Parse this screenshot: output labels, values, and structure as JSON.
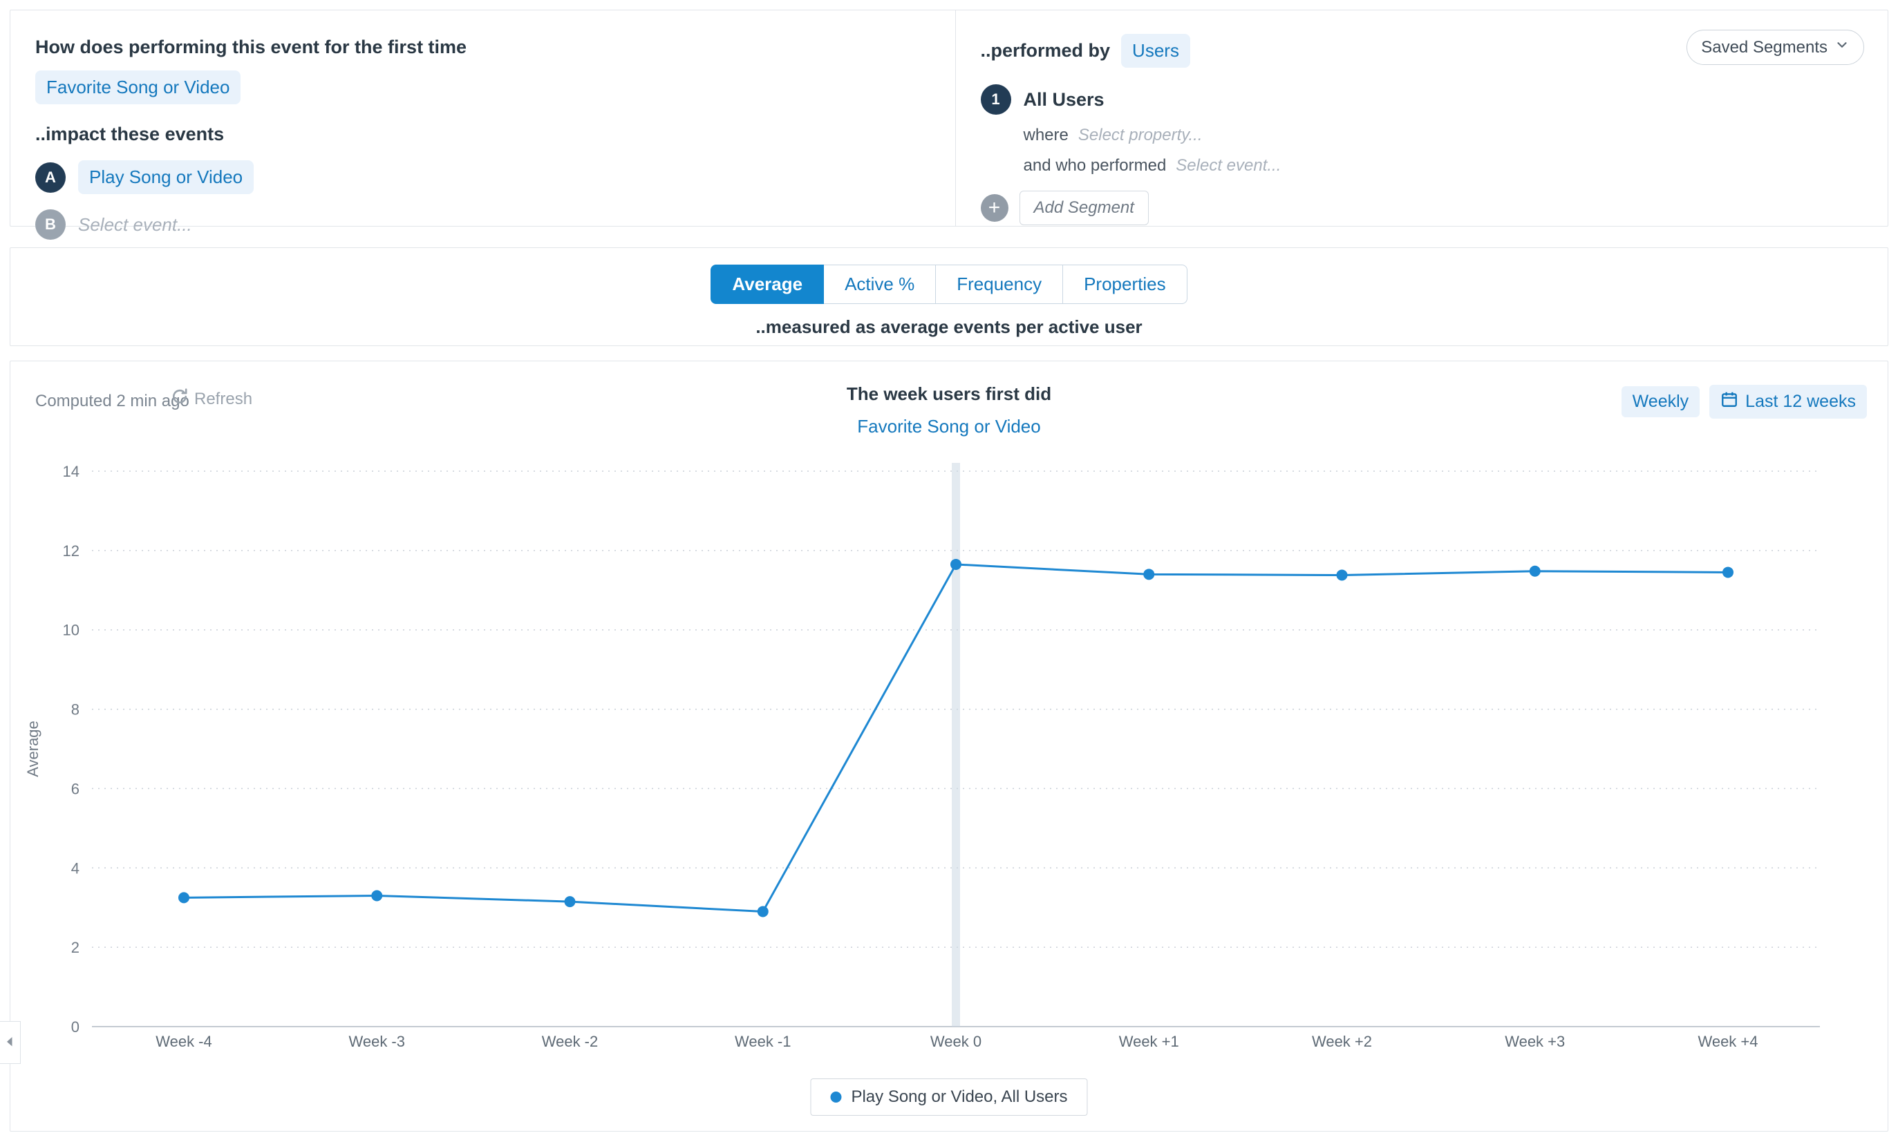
{
  "colors": {
    "accent_blue": "#1386ce",
    "link_blue": "#1478bd",
    "chip_bg": "#e9f2fb",
    "badge_dark": "#223c55",
    "badge_gray": "#9aa4af",
    "series_blue": "#1e88d2"
  },
  "query": {
    "left": {
      "question": "How does performing this event for the first time",
      "first_event": "Favorite Song or Video",
      "impact_label": "..impact these events",
      "events": [
        {
          "badge": "A",
          "label": "Play Song or Video"
        },
        {
          "badge": "B",
          "label": "Select event..."
        }
      ]
    },
    "right": {
      "performed_by_label": "..performed by",
      "performed_by_value": "Users",
      "saved_segments_label": "Saved Segments",
      "segment": {
        "badge": "1",
        "name": "All Users",
        "where_label": "where",
        "where_placeholder": "Select property...",
        "performed_label": "and who performed",
        "performed_placeholder": "Select event..."
      },
      "add_segment_plus": "+",
      "add_segment_label": "Add Segment"
    }
  },
  "measure": {
    "tabs": [
      {
        "label": "Average",
        "active": true
      },
      {
        "label": "Active %",
        "active": false
      },
      {
        "label": "Frequency",
        "active": false
      },
      {
        "label": "Properties",
        "active": false
      }
    ],
    "caption": "..measured as average events per active user"
  },
  "chart_header": {
    "computed": "Computed 2 min ago",
    "refresh_label": "Refresh",
    "title_line1": "The week users first did",
    "title_line2": "Favorite Song or Video",
    "interval_label": "Weekly",
    "range_label": "Last 12 weeks"
  },
  "chart_data": {
    "type": "line",
    "title": "The week users first did Favorite Song or Video",
    "categories": [
      "Week -4",
      "Week -3",
      "Week -2",
      "Week -1",
      "Week 0",
      "Week +1",
      "Week +2",
      "Week +3",
      "Week +4"
    ],
    "series": [
      {
        "name": "Play Song or Video, All Users",
        "values": [
          3.25,
          3.3,
          3.15,
          2.9,
          11.65,
          11.4,
          11.38,
          11.48,
          11.45
        ]
      }
    ],
    "xlabel": "",
    "ylabel": "Average",
    "ylim": [
      0,
      14
    ],
    "yticks": [
      0,
      2,
      4,
      6,
      8,
      10,
      12,
      14
    ],
    "highlight_x": "Week 0",
    "grid": true,
    "legend_position": "bottom"
  }
}
